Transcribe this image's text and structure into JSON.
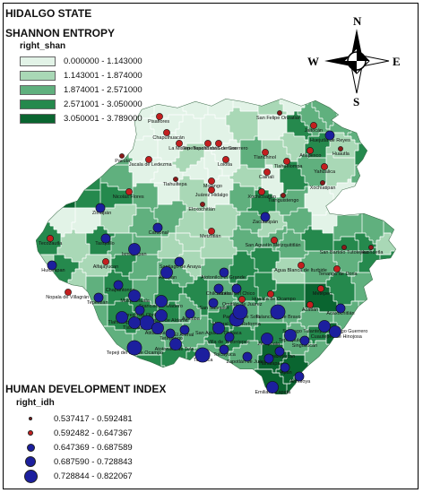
{
  "map": {
    "title": "HIDALGO STATE",
    "entropy_title": "SHANNON ENTROPY",
    "entropy_field": "right_shan",
    "entropy_classes": [
      {
        "label": "0.000000 - 1.143000",
        "color": "#e2f3e7"
      },
      {
        "label": "1.143001 - 1.874000",
        "color": "#a9d8b6"
      },
      {
        "label": "1.874001 - 2.571000",
        "color": "#60b07e"
      },
      {
        "label": "2.571001 - 3.050000",
        "color": "#25894d"
      },
      {
        "label": "3.050001 - 3.789000",
        "color": "#0a6530"
      }
    ],
    "idh_title": "HUMAN DEVELOPMENT INDEX",
    "idh_field": "right_idh",
    "idh_classes": [
      {
        "label": "0.537417 - 0.592481",
        "color": "#8b1a1a",
        "level": 1
      },
      {
        "label": "0.592482 - 0.647367",
        "color": "#c21f1f",
        "level": 2
      },
      {
        "label": "0.647369 - 0.687589",
        "color": "#1c1f9e",
        "level": 3
      },
      {
        "label": "0.687590 - 0.728843",
        "color": "#1c1f9e",
        "level": 4
      },
      {
        "label": "0.728844 - 0.822067",
        "color": "#1c1f9e",
        "level": 5
      }
    ],
    "compass": {
      "n": "N",
      "s": "S",
      "e": "E",
      "w": "W"
    },
    "municipalities": [
      "Pisaflores",
      "San Felipe Orizatlán",
      "Chapulhuacán",
      "Jaltocán",
      "Huejutla de Reyes",
      "La Misión",
      "Tepehuacán de Guerrero",
      "Tlanchinol",
      "Atlapexco",
      "Huautla",
      "Pacula",
      "Jacala de Ledezma",
      "Lolotla",
      "Calnali",
      "Yahualica",
      "Tlahuiltepa",
      "Molango",
      "Xochiatipan",
      "Nicolás Flores",
      "Juárez Hidalgo",
      "Xochicoatlán",
      "Tianguistengo",
      "Eloxochitlán",
      "Zimapán",
      "Zacualtipán",
      "Cardonal",
      "Metztitlán",
      "San Agustín Metzquititlán",
      "Tecozautla",
      "Tasquillo",
      "San Bartolo Tutotepec",
      "Huehuetla",
      "Ixmiquilpan",
      "Huichapan",
      "Alfajayucan",
      "Santiago de Anaya",
      "Actopan",
      "Atotonilco el Grande",
      "Agua Blanca de Iturbide",
      "Tenango de Doria",
      "Chapantongo",
      "Nopala de Villagrán",
      "Mixquiahuala",
      "Francisco I. Madero",
      "Huasca de Ocampo",
      "Metepec",
      "Tepetitlán",
      "Progreso de Obregón",
      "Chilcuautla",
      "Omitlán de Juárez",
      "Acatlán",
      "Acaxochitlán",
      "Tula",
      "Tlahuelilpan",
      "Tezontepec de Aldama",
      "Ajacuba",
      "San Salvador",
      "Mineral del Chico",
      "Tulancingo de Bravo",
      "Tepeapulco",
      "Tepeji del Río de Ocampo",
      "Atitalaquia",
      "Mineral de la Reforma",
      "Singuilucan",
      "Cuautepec de Hinojosa",
      "Villa de Tezontepec",
      "Zempoala",
      "Apan",
      "Almoloya",
      "Tlanalapa",
      "Emiliano Zapata",
      "Tetepango",
      "Atotonilco de Tula",
      "Tlaxcoapan",
      "San Agustín Tlaxiaca",
      "Tolcayuca",
      "Tizayuca",
      "Zapotlán de Juárez",
      "Pachuca de Soto",
      "El Arenal",
      "Epazoyucan",
      "Santiago Tulantepec de Lugo Guerrero",
      "Tepehuacán de Guerrero",
      "Tlahuelompa"
    ]
  }
}
